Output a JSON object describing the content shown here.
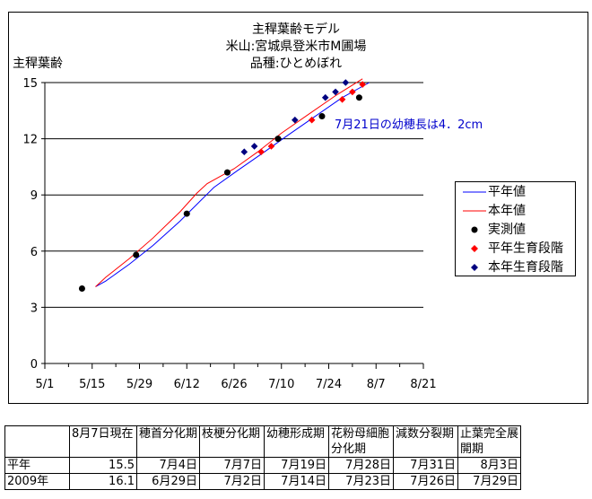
{
  "chart_data": {
    "type": "line",
    "title_lines": [
      "主稈葉齢モデル",
      "米山:宮城県登米市M圃場",
      "品種:ひとめぼれ"
    ],
    "ylabel": "主稈葉齢",
    "xlabel": "",
    "ylim": [
      0,
      15
    ],
    "yticks": [
      "0",
      "3",
      "6",
      "9",
      "12",
      "15"
    ],
    "xticks": [
      "5/1",
      "5/15",
      "5/29",
      "6/12",
      "6/26",
      "7/10",
      "7/24",
      "8/7",
      "8/21"
    ],
    "grid": "horizontal",
    "legend_position": "right",
    "colors": {
      "heinen": "#0000ff",
      "honnen": "#ff0000",
      "jissoku": "#000000",
      "heinen_stage": "#ff0000",
      "honnen_stage": "#000080"
    },
    "series": [
      {
        "name": "平年値",
        "kind": "line",
        "color": "#0000ff",
        "x": [
          15,
          18,
          25,
          32,
          40,
          50,
          57,
          65,
          72,
          80,
          88,
          96
        ],
        "y": [
          4.1,
          4.4,
          5.3,
          6.3,
          7.6,
          9.4,
          10.3,
          11.3,
          12.2,
          13.2,
          14.2,
          15.0
        ]
      },
      {
        "name": "本年値",
        "kind": "line",
        "color": "#ff0000",
        "x": [
          15,
          18,
          25,
          32,
          40,
          45,
          48,
          52,
          56,
          63,
          70,
          78,
          86,
          94
        ],
        "y": [
          4.1,
          4.6,
          5.6,
          6.7,
          8.1,
          9.1,
          9.6,
          10.0,
          10.4,
          11.3,
          12.3,
          13.3,
          14.3,
          15.2
        ]
      },
      {
        "name": "実測値",
        "kind": "point",
        "color": "#000000",
        "x": [
          11,
          27,
          42,
          54,
          69,
          82,
          93
        ],
        "y": [
          4.0,
          5.8,
          8.0,
          10.2,
          12.0,
          13.2,
          14.2
        ]
      },
      {
        "name": "平年生育段階",
        "kind": "point",
        "color": "#ff0000",
        "x": [
          64,
          67,
          79,
          88,
          91,
          94
        ],
        "y": [
          11.3,
          11.6,
          13.0,
          14.1,
          14.5,
          14.9
        ]
      },
      {
        "name": "本年生育段階",
        "kind": "point",
        "color": "#000080",
        "x": [
          59,
          62,
          74,
          83,
          86,
          89
        ],
        "y": [
          11.3,
          11.6,
          13.0,
          14.2,
          14.5,
          15.0
        ]
      }
    ],
    "annotation": "7月21日の幼穂長は4．2cm"
  },
  "table": {
    "header": [
      "",
      "8月7日現在",
      "穂首分化期",
      "枝梗分化期",
      "幼穂形成期",
      "花粉母細胞分化期",
      "減数分裂期",
      "止葉完全展開期"
    ],
    "rows": [
      [
        "平年",
        "15.5",
        "7月4日",
        "7月7日",
        "7月19日",
        "7月28日",
        "7月31日",
        "8月3日"
      ],
      [
        "2009年",
        "16.1",
        "6月29日",
        "7月2日",
        "7月14日",
        "7月23日",
        "7月26日",
        "7月29日"
      ]
    ]
  }
}
